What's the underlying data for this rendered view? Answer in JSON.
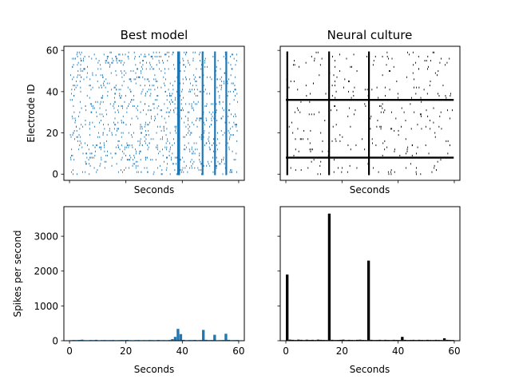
{
  "chart_data": [
    {
      "type": "raster",
      "panel": "top-left",
      "title": "Best model",
      "xlabel": "Seconds",
      "ylabel": "Electrode ID",
      "xlim": [
        -2,
        62
      ],
      "ylim": [
        -3,
        62
      ],
      "xticks": [
        0,
        20,
        40,
        60
      ],
      "xtick_labels_visible": false,
      "yticks": [
        0,
        20,
        40,
        60
      ],
      "ytick_labels": [
        "0",
        "20",
        "40",
        "60"
      ],
      "color": "#1f77b4",
      "electrode_range": [
        0,
        59
      ],
      "burst_times": [
        38.5,
        38.9,
        47.2,
        51.6,
        55.6
      ],
      "grid": false
    },
    {
      "type": "raster",
      "panel": "top-right",
      "title": "Neural culture",
      "xlabel": "Seconds",
      "ylabel": "",
      "xlim": [
        -2,
        62
      ],
      "ylim": [
        -3,
        62
      ],
      "xticks": [
        0,
        20,
        40,
        60
      ],
      "xtick_labels_visible": false,
      "yticks": [
        0,
        20,
        40,
        60
      ],
      "ytick_labels_visible": false,
      "color": "#000000",
      "electrode_range": [
        0,
        59
      ],
      "burst_times": [
        0.5,
        15.4,
        29.6
      ],
      "dense_electrodes": [
        36,
        8
      ],
      "grid": false
    },
    {
      "type": "bar",
      "panel": "bottom-left",
      "title": "",
      "xlabel": "Seconds",
      "ylabel": "Spikes per second",
      "xlim": [
        -2,
        62
      ],
      "ylim": [
        0,
        3850
      ],
      "xticks": [
        0,
        20,
        40,
        60
      ],
      "xtick_labels": [
        "0",
        "20",
        "40",
        "60"
      ],
      "yticks": [
        0,
        1000,
        2000,
        3000
      ],
      "ytick_labels": [
        "0",
        "1000",
        "2000",
        "3000"
      ],
      "color": "#1f77b4",
      "x": [
        0,
        1,
        2,
        3,
        4,
        5,
        6,
        7,
        8,
        9,
        10,
        11,
        12,
        13,
        14,
        15,
        16,
        17,
        18,
        19,
        20,
        21,
        22,
        23,
        24,
        25,
        26,
        27,
        28,
        29,
        30,
        31,
        32,
        33,
        34,
        35,
        36,
        37,
        38,
        39,
        40,
        41,
        42,
        43,
        44,
        45,
        46,
        47,
        48,
        49,
        50,
        51,
        52,
        53,
        54,
        55,
        56,
        57,
        58,
        59
      ],
      "values": [
        15,
        20,
        18,
        22,
        30,
        16,
        15,
        20,
        17,
        25,
        14,
        18,
        20,
        16,
        18,
        20,
        15,
        17,
        20,
        18,
        22,
        16,
        14,
        18,
        20,
        15,
        18,
        16,
        20,
        18,
        15,
        22,
        16,
        18,
        15,
        20,
        45,
        110,
        340,
        190,
        25,
        15,
        20,
        18,
        22,
        16,
        20,
        310,
        25,
        18,
        20,
        170,
        15,
        18,
        20,
        200,
        25,
        16,
        18,
        20
      ],
      "grid": false
    },
    {
      "type": "bar",
      "panel": "bottom-right",
      "title": "",
      "xlabel": "Seconds",
      "ylabel": "",
      "xlim": [
        -2,
        62
      ],
      "ylim": [
        0,
        3850
      ],
      "xticks": [
        0,
        20,
        40,
        60
      ],
      "xtick_labels": [
        "0",
        "20",
        "40",
        "60"
      ],
      "yticks": [
        0,
        1000,
        2000,
        3000
      ],
      "ytick_labels_visible": false,
      "color": "#000000",
      "x": [
        0,
        1,
        2,
        3,
        4,
        5,
        6,
        7,
        8,
        9,
        10,
        11,
        12,
        13,
        14,
        15,
        16,
        17,
        18,
        19,
        20,
        21,
        22,
        23,
        24,
        25,
        26,
        27,
        28,
        29,
        30,
        31,
        32,
        33,
        34,
        35,
        36,
        37,
        38,
        39,
        40,
        41,
        42,
        43,
        44,
        45,
        46,
        47,
        48,
        49,
        50,
        51,
        52,
        53,
        54,
        55,
        56,
        57,
        58,
        59
      ],
      "values": [
        1900,
        30,
        25,
        20,
        30,
        25,
        20,
        28,
        22,
        25,
        20,
        30,
        25,
        22,
        20,
        3650,
        25,
        20,
        22,
        25,
        30,
        20,
        25,
        22,
        20,
        25,
        28,
        22,
        20,
        2300,
        25,
        20,
        22,
        25,
        20,
        25,
        22,
        20,
        25,
        22,
        20,
        110,
        25,
        20,
        22,
        25,
        20,
        25,
        22,
        20,
        25,
        22,
        20,
        25,
        22,
        20,
        70,
        25,
        22,
        20
      ],
      "grid": false
    }
  ]
}
